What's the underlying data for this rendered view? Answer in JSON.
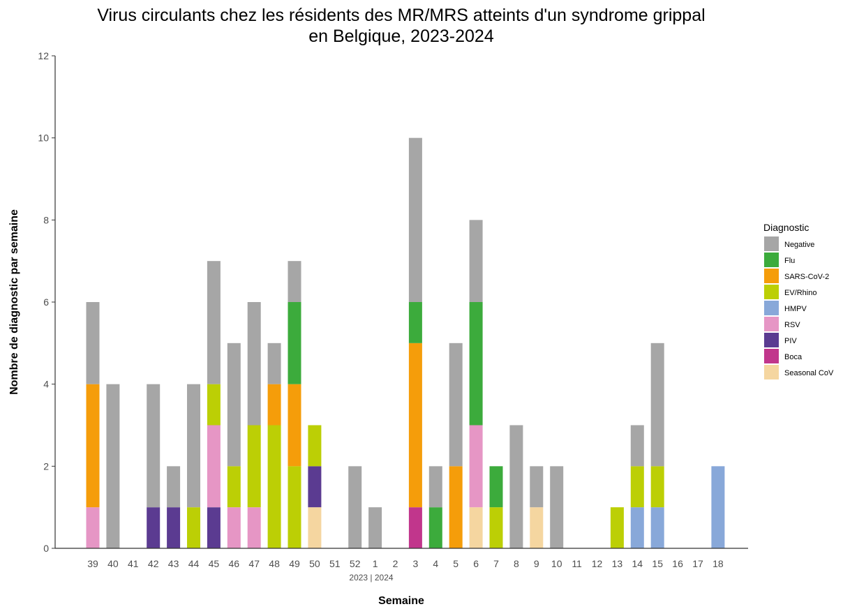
{
  "chart_data": {
    "type": "bar",
    "stacked": true,
    "title_line1": "Virus circulants chez les résidents des MR/MRS atteints d'un syndrome grippal",
    "title_line2": "en Belgique, 2023-2024",
    "xlabel": "Semaine",
    "ylabel": "Nombre de diagnostic par semaine",
    "year_separator_label": "2023 | 2024",
    "ylim": [
      0,
      12
    ],
    "yticks": [
      0,
      2,
      4,
      6,
      8,
      10,
      12
    ],
    "categories": [
      "39",
      "40",
      "41",
      "42",
      "43",
      "44",
      "45",
      "46",
      "47",
      "48",
      "49",
      "50",
      "51",
      "52",
      "1",
      "2",
      "3",
      "4",
      "5",
      "6",
      "7",
      "8",
      "9",
      "10",
      "11",
      "12",
      "13",
      "14",
      "15",
      "16",
      "17",
      "18"
    ],
    "legend_title": "Diagnostic",
    "legend_position": "right",
    "grid": false,
    "series": [
      {
        "name": "Negative",
        "color": "#a6a6a6",
        "values": [
          2,
          4,
          0,
          3,
          1,
          3,
          3,
          3,
          3,
          1,
          1,
          0,
          0,
          2,
          1,
          0,
          4,
          1,
          3,
          2,
          0,
          3,
          1,
          2,
          0,
          0,
          0,
          1,
          3,
          0,
          0,
          0
        ]
      },
      {
        "name": "Flu",
        "color": "#3cab3c",
        "values": [
          0,
          0,
          0,
          0,
          0,
          0,
          0,
          0,
          0,
          0,
          2,
          0,
          0,
          0,
          0,
          0,
          1,
          1,
          0,
          3,
          1,
          0,
          0,
          0,
          0,
          0,
          0,
          0,
          0,
          0,
          0,
          0
        ]
      },
      {
        "name": "SARS-CoV-2",
        "color": "#f59d0a",
        "values": [
          3,
          0,
          0,
          0,
          0,
          0,
          0,
          0,
          0,
          1,
          2,
          0,
          0,
          0,
          0,
          0,
          4,
          0,
          2,
          0,
          0,
          0,
          0,
          0,
          0,
          0,
          0,
          0,
          0,
          0,
          0,
          0
        ]
      },
      {
        "name": "EV/Rhino",
        "color": "#bccf05",
        "values": [
          0,
          0,
          0,
          0,
          0,
          1,
          1,
          1,
          2,
          3,
          2,
          1,
          0,
          0,
          0,
          0,
          0,
          0,
          0,
          0,
          1,
          0,
          0,
          0,
          0,
          0,
          1,
          1,
          1,
          0,
          0,
          0
        ]
      },
      {
        "name": "HMPV",
        "color": "#88a8d9",
        "values": [
          0,
          0,
          0,
          0,
          0,
          0,
          0,
          0,
          0,
          0,
          0,
          0,
          0,
          0,
          0,
          0,
          0,
          0,
          0,
          0,
          0,
          0,
          0,
          0,
          0,
          0,
          0,
          1,
          1,
          0,
          0,
          2
        ]
      },
      {
        "name": "RSV",
        "color": "#e696c5",
        "values": [
          1,
          0,
          0,
          0,
          0,
          0,
          2,
          1,
          1,
          0,
          0,
          0,
          0,
          0,
          0,
          0,
          0,
          0,
          0,
          2,
          0,
          0,
          0,
          0,
          0,
          0,
          0,
          0,
          0,
          0,
          0,
          0
        ]
      },
      {
        "name": "PIV",
        "color": "#5b3b91",
        "values": [
          0,
          0,
          0,
          1,
          1,
          0,
          1,
          0,
          0,
          0,
          0,
          1,
          0,
          0,
          0,
          0,
          0,
          0,
          0,
          0,
          0,
          0,
          0,
          0,
          0,
          0,
          0,
          0,
          0,
          0,
          0,
          0
        ]
      },
      {
        "name": "Boca",
        "color": "#c1368c",
        "values": [
          0,
          0,
          0,
          0,
          0,
          0,
          0,
          0,
          0,
          0,
          0,
          0,
          0,
          0,
          0,
          0,
          1,
          0,
          0,
          0,
          0,
          0,
          0,
          0,
          0,
          0,
          0,
          0,
          0,
          0,
          0,
          0
        ]
      },
      {
        "name": "Seasonal CoV",
        "color": "#f5d6a0",
        "values": [
          0,
          0,
          0,
          0,
          0,
          0,
          0,
          0,
          0,
          0,
          0,
          1,
          0,
          0,
          0,
          0,
          0,
          0,
          0,
          1,
          0,
          0,
          1,
          0,
          0,
          0,
          0,
          0,
          0,
          0,
          0,
          0
        ]
      }
    ],
    "stack_order_bottom_to_top": [
      "Boca",
      "Seasonal CoV",
      "HMPV",
      "PIV",
      "RSV",
      "EV/Rhino",
      "SARS-CoV-2",
      "Flu",
      "Negative"
    ]
  }
}
